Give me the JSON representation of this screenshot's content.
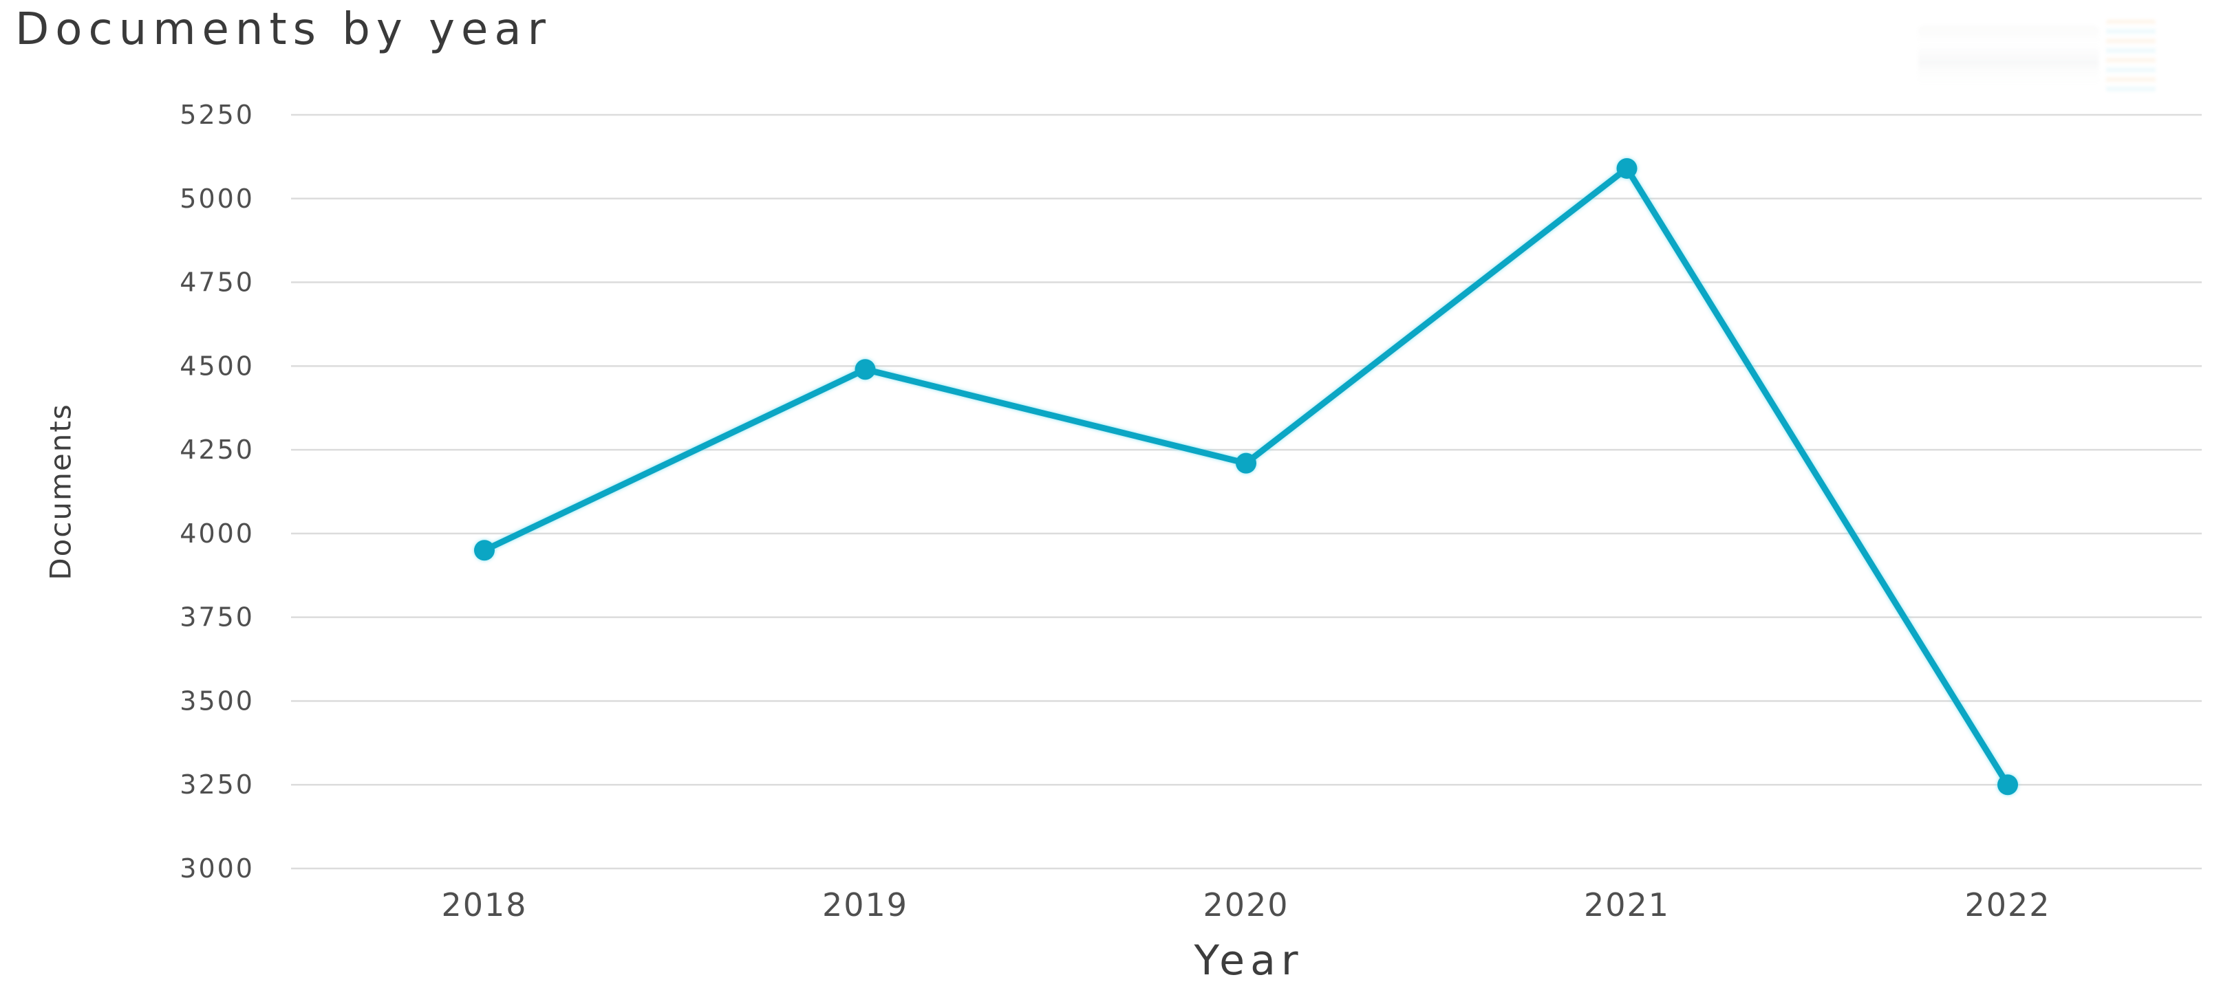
{
  "page": {
    "background": "#ffffff"
  },
  "chart_data": {
    "type": "line",
    "title": "Documents by year",
    "xlabel": "Year",
    "ylabel": "Documents",
    "categories": [
      "2018",
      "2019",
      "2020",
      "2021",
      "2022"
    ],
    "series": [
      {
        "name": "Documents",
        "values": [
          3950,
          4490,
          4210,
          5090,
          3250
        ]
      }
    ],
    "y_ticks": [
      5250,
      5000,
      4750,
      4500,
      4250,
      4000,
      3750,
      3500,
      3250,
      3000
    ],
    "ylim": [
      3000,
      5250
    ],
    "grid": true,
    "legend": "none",
    "colors": {
      "line": "#0ba6c4",
      "marker": "#0ba6c4",
      "marker_halo": "#80e0f0",
      "grid": "#dcdcdc",
      "title_text": "#3a3a3a",
      "axis_label_text": "#3d3d3d",
      "tick_text": "#4f4f4f"
    }
  }
}
